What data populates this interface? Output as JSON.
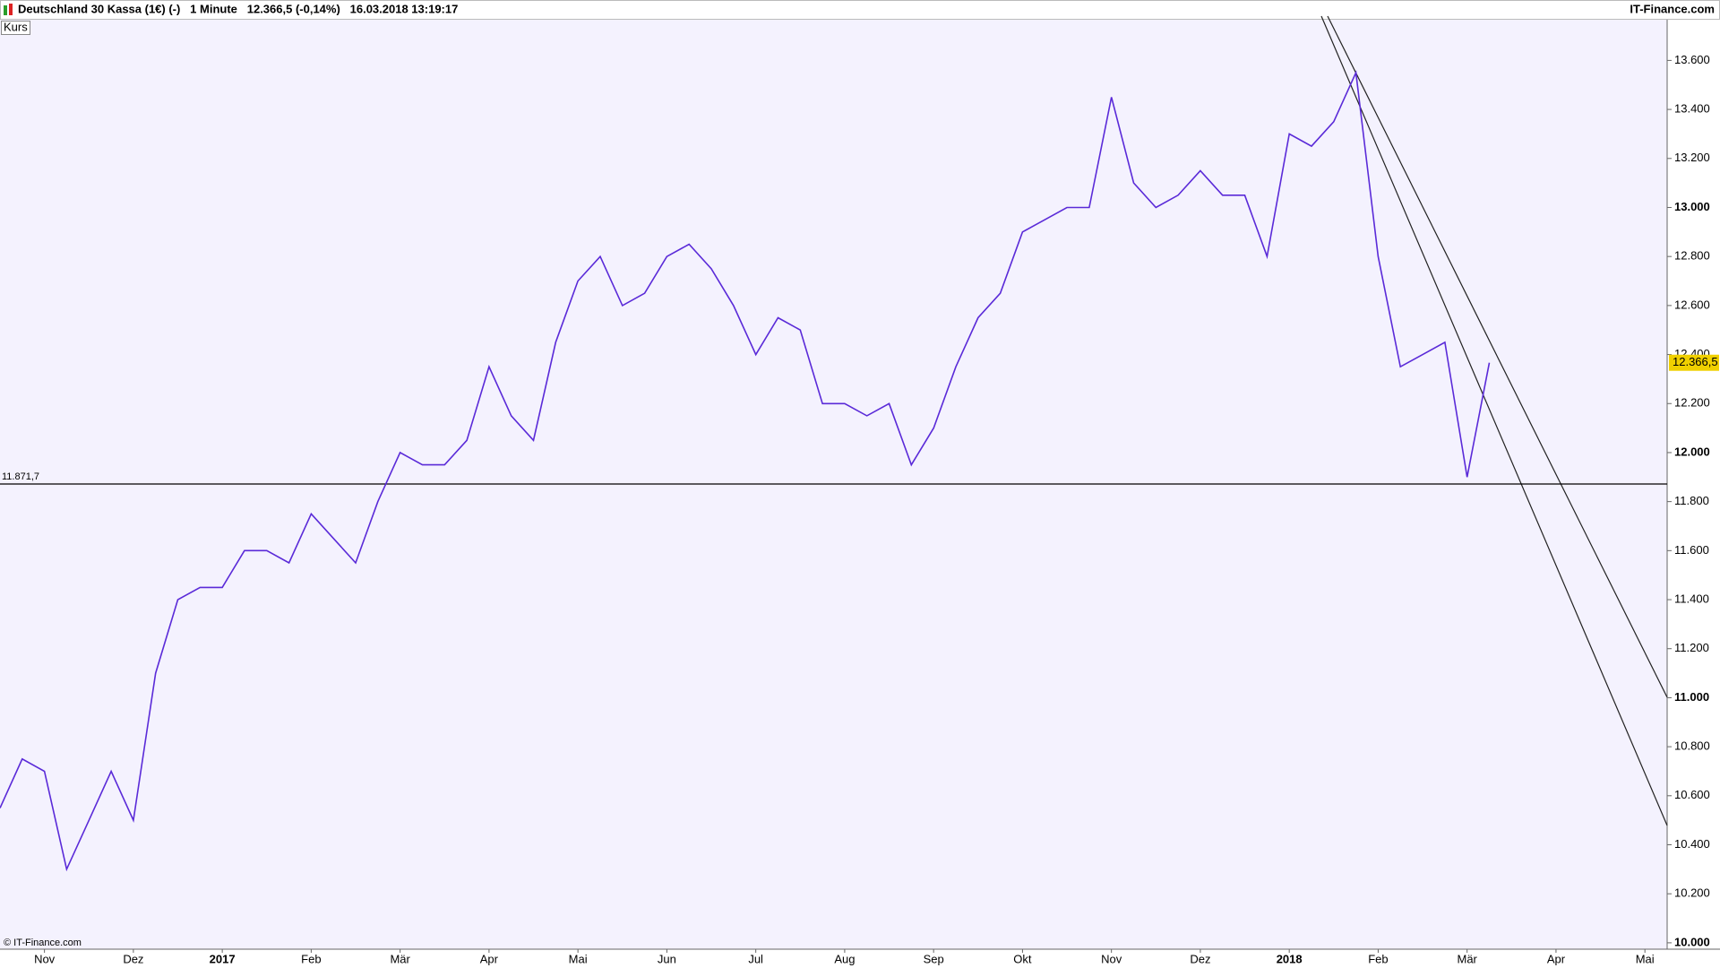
{
  "chart_data": {
    "type": "line",
    "title": "Deutschland 30 Kassa (1€) (-)   1 Minute   12.366,5 (-0,14%)   16.03.2018 13:19:17",
    "source": "IT-Finance.com",
    "copyright": "© IT-Finance.com",
    "categories": [
      null,
      null,
      "Nov",
      null,
      null,
      null,
      "Dez",
      null,
      null,
      null,
      "2017",
      null,
      null,
      null,
      "Feb",
      null,
      null,
      null,
      "Mär",
      null,
      null,
      null,
      "Apr",
      null,
      null,
      null,
      "Mai",
      null,
      null,
      null,
      "Jun",
      null,
      null,
      null,
      "Jul",
      null,
      null,
      null,
      "Aug",
      null,
      null,
      null,
      "Sep",
      null,
      null,
      null,
      "Okt",
      null,
      null,
      null,
      "Nov",
      null,
      null,
      null,
      "Dez",
      null,
      null,
      null,
      "2018",
      null,
      null,
      null,
      "Feb",
      null,
      null,
      null,
      "Mär",
      null,
      null,
      null,
      "Apr",
      null,
      null,
      null,
      "Mai",
      null
    ],
    "series": [
      {
        "name": "Kurs",
        "color": "#5a2ad8",
        "values": [
          10550,
          10750,
          10700,
          10300,
          10500,
          10700,
          10500,
          11100,
          11400,
          11450,
          11450,
          11600,
          11600,
          11550,
          11750,
          11650,
          11550,
          11800,
          12000,
          11950,
          11950,
          12050,
          12350,
          12150,
          12050,
          12450,
          12700,
          12800,
          12600,
          12650,
          12800,
          12850,
          12750,
          12600,
          12400,
          12550,
          12500,
          12200,
          12200,
          12150,
          12200,
          11950,
          12100,
          12350,
          12550,
          12650,
          12900,
          12950,
          13000,
          13000,
          13450,
          13100,
          13000,
          13050,
          13150,
          13050,
          13050,
          12800,
          13300,
          13250,
          13350,
          13550,
          12800,
          12350,
          12400,
          12450,
          11900,
          12366.5,
          null,
          null,
          null,
          null,
          null,
          null,
          null,
          null
        ]
      }
    ],
    "ylim": [
      9974,
      13766
    ],
    "yticks": [
      {
        "value": 10000,
        "label": "10.000"
      },
      {
        "value": 10200,
        "label": "10.200"
      },
      {
        "value": 10400,
        "label": "10.400"
      },
      {
        "value": 10600,
        "label": "10.600"
      },
      {
        "value": 10800,
        "label": "10.800"
      },
      {
        "value": 11000,
        "label": "11.000"
      },
      {
        "value": 11200,
        "label": "11.200"
      },
      {
        "value": 11400,
        "label": "11.400"
      },
      {
        "value": 11600,
        "label": "11.600"
      },
      {
        "value": 11800,
        "label": "11.800"
      },
      {
        "value": 12000,
        "label": "12.000"
      },
      {
        "value": 12200,
        "label": "12.200"
      },
      {
        "value": 12400,
        "label": "12.400"
      },
      {
        "value": 12600,
        "label": "12.600"
      },
      {
        "value": 12800,
        "label": "12.800"
      },
      {
        "value": 13000,
        "label": "13.000"
      },
      {
        "value": 13200,
        "label": "13.200"
      },
      {
        "value": 13400,
        "label": "13.400"
      },
      {
        "value": 13600,
        "label": "13.600"
      }
    ],
    "hline": {
      "value": 11871.7,
      "label": "11.871,7"
    },
    "last_price": {
      "value": 12366.5,
      "label": "12.366,5"
    }
  }
}
